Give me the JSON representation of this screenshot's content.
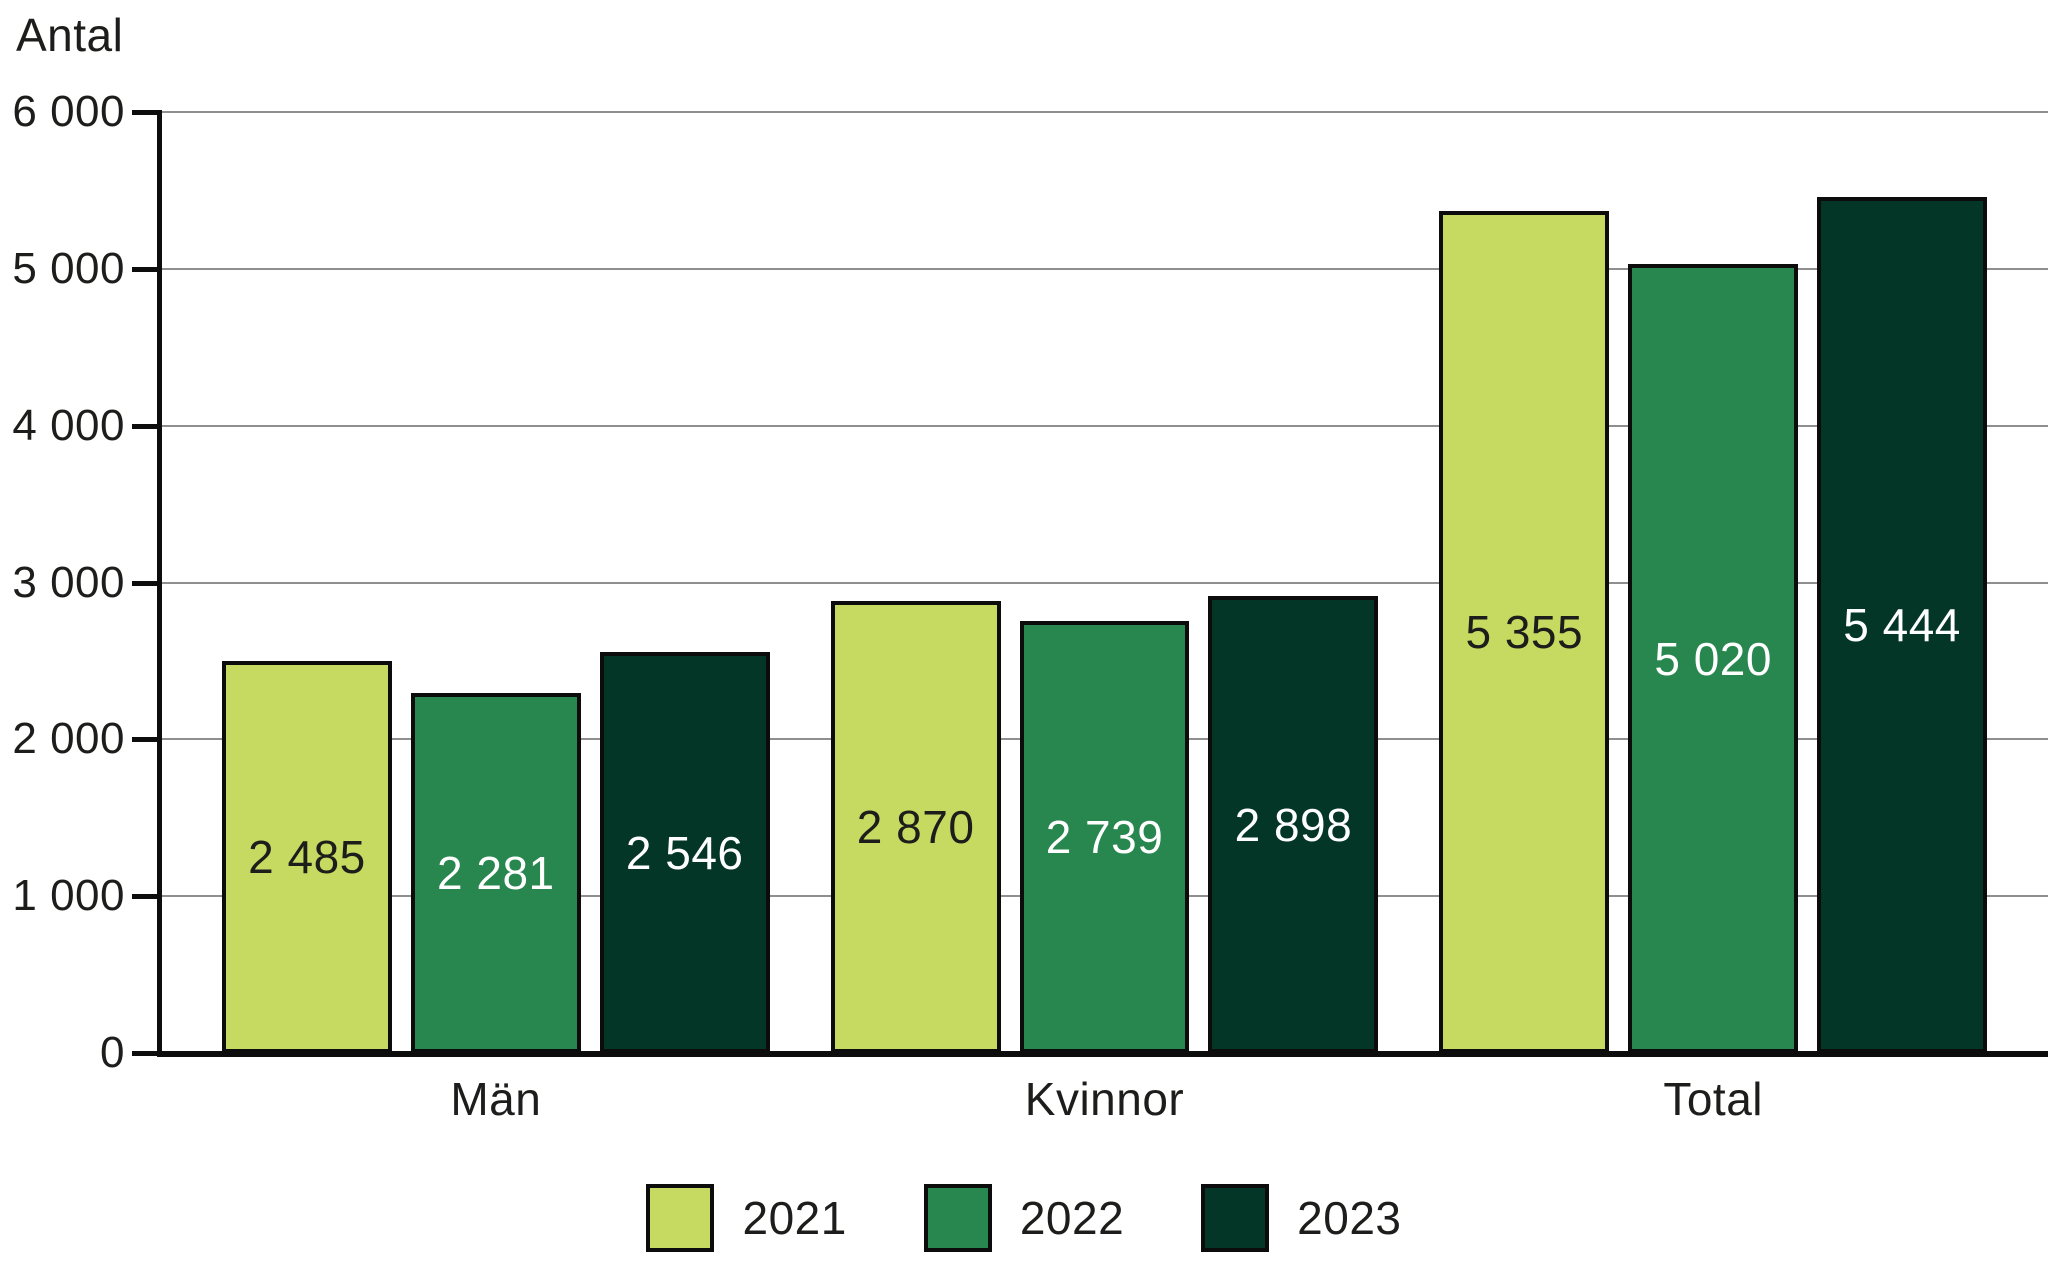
{
  "chart_data": {
    "type": "bar",
    "title": "",
    "ylabel": "Antal",
    "xlabel": "",
    "categories": [
      "Män",
      "Kvinnor",
      "Total"
    ],
    "series": [
      {
        "name": "2021",
        "color": "#c6d960",
        "label_color": "#1d1d1b",
        "values": [
          2485,
          2870,
          5355
        ],
        "value_labels": [
          "2 485",
          "2 870",
          "5 355"
        ]
      },
      {
        "name": "2022",
        "color": "#28874e",
        "label_color": "#ffffff",
        "values": [
          2281,
          2739,
          5020
        ],
        "value_labels": [
          "2 281",
          "2 739",
          "5 020"
        ]
      },
      {
        "name": "2023",
        "color": "#043628",
        "label_color": "#ffffff",
        "values": [
          2546,
          2898,
          5444
        ],
        "value_labels": [
          "2 546",
          "2 898",
          "5 444"
        ]
      }
    ],
    "ylim": [
      0,
      6000
    ],
    "ytick_step": 1000,
    "ytick_labels": [
      "0",
      "1 000",
      "2 000",
      "3 000",
      "4 000",
      "5 000",
      "6 000"
    ],
    "grid": "horizontal",
    "legend_position": "bottom",
    "style": {
      "grid_color": "#8f8f8f",
      "axis_color": "#0d0d0d",
      "text_color": "#1d1d1b",
      "background_color": "#ffffff"
    }
  }
}
